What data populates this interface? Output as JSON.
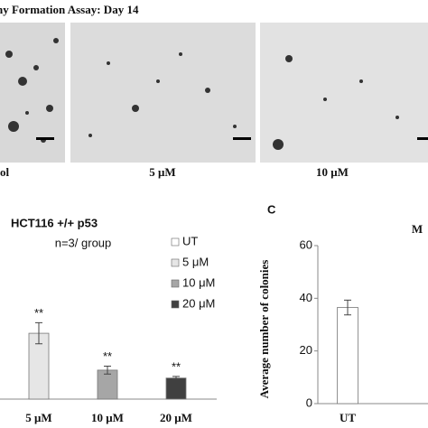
{
  "figure": {
    "title": "ny Formation Assay: Day 14",
    "image_labels": [
      "ol",
      "5 μM",
      "10 μM"
    ],
    "panel_label": "C"
  },
  "chart_data": [
    {
      "type": "bar",
      "title": "HCT116 +/+ p53",
      "subtitle": "n=3/ group",
      "categories": [
        "5 μM",
        "10 μM",
        "20 μM"
      ],
      "values": [
        25,
        11,
        8
      ],
      "errors": [
        4,
        1.5,
        0.6
      ],
      "annotations": [
        "**",
        "**",
        "**"
      ],
      "colors": [
        "#e6e6e6",
        "#a6a6a6",
        "#404040"
      ],
      "legend": [
        {
          "name": "UT",
          "color": "#ffffff"
        },
        {
          "name": "5 μM",
          "color": "#e6e6e6"
        },
        {
          "name": "10 μM",
          "color": "#a6a6a6"
        },
        {
          "name": "20 μM",
          "color": "#404040"
        }
      ],
      "ylim": [
        0,
        60
      ]
    },
    {
      "type": "bar",
      "title": "M",
      "ylabel": "Average number of colonies",
      "categories": [
        "UT"
      ],
      "values": [
        36.5
      ],
      "errors": [
        2.8
      ],
      "colors": [
        "#ffffff"
      ],
      "ylim": [
        0,
        60
      ],
      "yticks": [
        0,
        20,
        40,
        60
      ]
    }
  ]
}
